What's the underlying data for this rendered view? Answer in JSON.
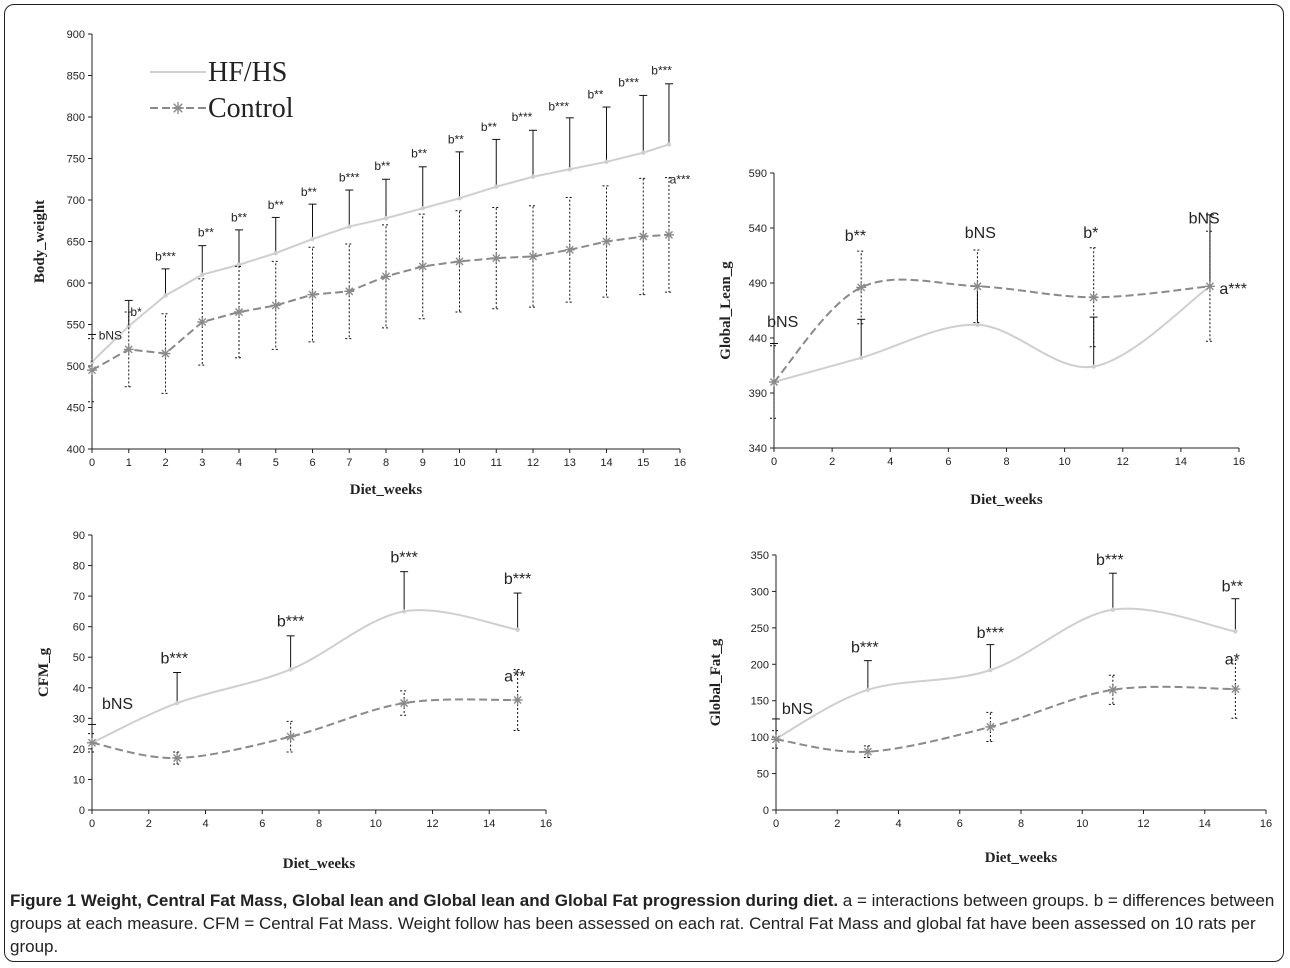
{
  "caption": {
    "title": "Figure 1 Weight, Central Fat Mass, Global lean and Global lean and Global Fat progression during diet.",
    "text": " a = interactions between groups. b = differences between groups at each measure. CFM = Central Fat Mass. Weight follow has been assessed on each rat. Central Fat Mass and global fat have been assessed on 10 rats per group."
  },
  "colors": {
    "hfhs": "#cfcfcf",
    "control": "#8a8a8a",
    "axis": "#222222"
  },
  "chart_data": [
    {
      "type": "line",
      "xlabel": "Diet_weeks",
      "ylabel": "Body_weight",
      "xlim": [
        0,
        16
      ],
      "ylim": [
        400,
        900
      ],
      "xticks": [
        "0",
        "1",
        "2",
        "3",
        "4",
        "5",
        "6",
        "7",
        "8",
        "9",
        "10",
        "11",
        "12",
        "13",
        "14",
        "15",
        "16"
      ],
      "yticks": [
        "400",
        "450",
        "500",
        "550",
        "600",
        "650",
        "700",
        "750",
        "800",
        "850",
        "900"
      ],
      "legend": [
        "HF/HS",
        "Control"
      ],
      "series": [
        {
          "name": "HF/HS",
          "x": [
            0,
            1,
            2,
            3,
            4,
            5,
            6,
            7,
            8,
            9,
            10,
            11,
            12,
            13,
            14,
            15,
            15.7
          ],
          "y": [
            505,
            548,
            585,
            610,
            622,
            636,
            653,
            668,
            678,
            690,
            702,
            716,
            728,
            737,
            746,
            757,
            767
          ],
          "err": [
            33,
            31,
            32,
            35,
            42,
            43,
            42,
            44,
            47,
            50,
            56,
            57,
            56,
            62,
            66,
            69,
            73
          ]
        },
        {
          "name": "Control",
          "x": [
            0,
            1,
            2,
            3,
            4,
            5,
            6,
            7,
            8,
            9,
            10,
            11,
            12,
            13,
            14,
            15,
            15.7
          ],
          "y": [
            495,
            520,
            515,
            553,
            565,
            573,
            586,
            590,
            608,
            620,
            626,
            630,
            632,
            640,
            650,
            656,
            658
          ],
          "err": [
            38,
            45,
            48,
            52,
            55,
            53,
            57,
            57,
            62,
            63,
            61,
            61,
            61,
            63,
            67,
            70,
            69
          ]
        }
      ],
      "annotations": [
        {
          "text": "bNS",
          "x": 0.5,
          "y": 532
        },
        {
          "text": "b*",
          "x": 1.2,
          "y": 560
        },
        {
          "text": "b***",
          "x": 2.0,
          "y": 627
        },
        {
          "text": "b**",
          "x": 3.1,
          "y": 656
        },
        {
          "text": "b**",
          "x": 4.0,
          "y": 674
        },
        {
          "text": "b**",
          "x": 5.0,
          "y": 689
        },
        {
          "text": "b**",
          "x": 5.9,
          "y": 705
        },
        {
          "text": "b***",
          "x": 7.0,
          "y": 722
        },
        {
          "text": "b**",
          "x": 7.9,
          "y": 736
        },
        {
          "text": "b**",
          "x": 8.9,
          "y": 751
        },
        {
          "text": "b**",
          "x": 9.9,
          "y": 768
        },
        {
          "text": "b**",
          "x": 10.8,
          "y": 783
        },
        {
          "text": "b***",
          "x": 11.7,
          "y": 795
        },
        {
          "text": "b***",
          "x": 12.7,
          "y": 808
        },
        {
          "text": "b**",
          "x": 13.7,
          "y": 822
        },
        {
          "text": "b***",
          "x": 14.6,
          "y": 837
        },
        {
          "text": "b***",
          "x": 15.5,
          "y": 851
        },
        {
          "text": "a***",
          "x": 16.0,
          "y": 720
        }
      ]
    },
    {
      "type": "line",
      "xlabel": "Diet_weeks",
      "ylabel": "Global_Lean_g",
      "xlim": [
        0,
        16
      ],
      "ylim": [
        340,
        590
      ],
      "xticks": [
        "0",
        "2",
        "4",
        "6",
        "8",
        "10",
        "12",
        "14",
        "16"
      ],
      "yticks": [
        "340",
        "390",
        "440",
        "490",
        "540",
        "590"
      ],
      "series": [
        {
          "name": "HF/HS",
          "x": [
            0,
            3,
            7,
            11,
            15
          ],
          "y": [
            400,
            422,
            452,
            414,
            487
          ],
          "err": [
            35,
            35,
            35,
            45,
            65
          ]
        },
        {
          "name": "Control",
          "x": [
            0,
            3,
            7,
            11,
            15
          ],
          "y": [
            400,
            486,
            487,
            477,
            487
          ],
          "err": [
            33,
            33,
            33,
            45,
            50
          ]
        }
      ],
      "annotations": [
        {
          "text": "bNS",
          "x": 0.3,
          "y": 450
        },
        {
          "text": "b**",
          "x": 2.8,
          "y": 528
        },
        {
          "text": "bNS",
          "x": 7.1,
          "y": 531
        },
        {
          "text": "b*",
          "x": 10.9,
          "y": 531
        },
        {
          "text": "bNS",
          "x": 14.8,
          "y": 544
        },
        {
          "text": "a***",
          "x": 15.8,
          "y": 480
        }
      ]
    },
    {
      "type": "line",
      "xlabel": "Diet_weeks",
      "ylabel": "CFM_g",
      "xlim": [
        0,
        16
      ],
      "ylim": [
        0,
        90
      ],
      "xticks": [
        "0",
        "2",
        "4",
        "6",
        "8",
        "10",
        "12",
        "14",
        "16"
      ],
      "yticks": [
        "0",
        "10",
        "20",
        "30",
        "40",
        "50",
        "60",
        "70",
        "80",
        "90"
      ],
      "series": [
        {
          "name": "HF/HS",
          "x": [
            0,
            3,
            7,
            11,
            15
          ],
          "y": [
            22,
            35,
            46,
            65,
            59
          ],
          "err": [
            6,
            10,
            11,
            13,
            12
          ]
        },
        {
          "name": "Control",
          "x": [
            0,
            3,
            7,
            11,
            15
          ],
          "y": [
            22,
            17,
            24,
            35,
            36
          ],
          "err": [
            3,
            2,
            5,
            4,
            10
          ]
        }
      ],
      "annotations": [
        {
          "text": "bNS",
          "x": 0.9,
          "y": 33
        },
        {
          "text": "b***",
          "x": 2.9,
          "y": 48
        },
        {
          "text": "b***",
          "x": 7.0,
          "y": 60
        },
        {
          "text": "b***",
          "x": 11.0,
          "y": 81
        },
        {
          "text": "b***",
          "x": 15.0,
          "y": 74
        },
        {
          "text": "a**",
          "x": 14.9,
          "y": 42
        }
      ]
    },
    {
      "type": "line",
      "xlabel": "Diet_weeks",
      "ylabel": "Global_Fat_g",
      "xlim": [
        0,
        16
      ],
      "ylim": [
        0,
        350
      ],
      "xticks": [
        "0",
        "2",
        "4",
        "6",
        "8",
        "10",
        "12",
        "14",
        "16"
      ],
      "yticks": [
        "0",
        "50",
        "100",
        "150",
        "200",
        "250",
        "300",
        "350"
      ],
      "series": [
        {
          "name": "HF/HS",
          "x": [
            0,
            3,
            7,
            11,
            15
          ],
          "y": [
            98,
            165,
            192,
            275,
            245
          ],
          "err": [
            27,
            40,
            35,
            50,
            45
          ]
        },
        {
          "name": "Control",
          "x": [
            0,
            3,
            7,
            11,
            15
          ],
          "y": [
            97,
            80,
            114,
            165,
            166
          ],
          "err": [
            12,
            8,
            20,
            20,
            40
          ]
        }
      ],
      "annotations": [
        {
          "text": "bNS",
          "x": 0.7,
          "y": 132
        },
        {
          "text": "b***",
          "x": 2.9,
          "y": 216
        },
        {
          "text": "b***",
          "x": 7.0,
          "y": 236
        },
        {
          "text": "b***",
          "x": 10.9,
          "y": 336
        },
        {
          "text": "b**",
          "x": 14.9,
          "y": 300
        },
        {
          "text": "a*",
          "x": 14.9,
          "y": 200
        }
      ]
    }
  ]
}
